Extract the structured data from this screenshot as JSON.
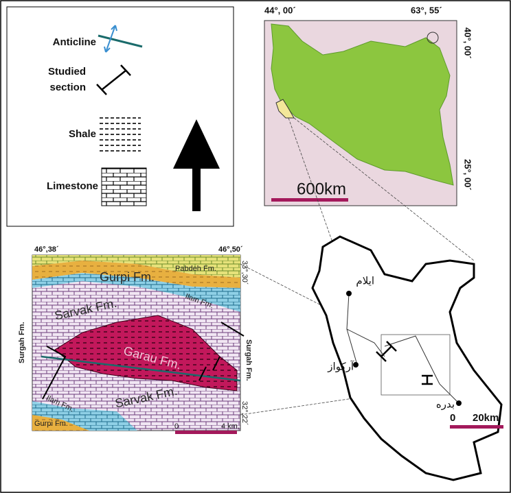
{
  "legend": {
    "anticline": "Anticline",
    "studied_section": [
      "Studied",
      "section"
    ],
    "shale": "Shale",
    "limestone": "Limestone"
  },
  "iran_map": {
    "lon_labels": [
      "44°, 00´",
      "63°, 55´"
    ],
    "lat_labels": [
      "40°, 00´",
      "25°, 00´"
    ],
    "scale": "600km"
  },
  "local_map": {
    "lon_labels": [
      "46°,38´",
      "46°,50´"
    ],
    "lat_labels": [
      "33°,30´",
      "32°,22´"
    ],
    "formations": [
      "Pabdeh Fm.",
      "Gurpi Fm.",
      "Ilam Fm.",
      "Sarvak Fm.",
      "Garau Fm.",
      "Surgah Fm.",
      "Surgah Fm.",
      "Ilam Fm.",
      "Gurpi Fm.",
      "Sarvak Fm."
    ],
    "scale": [
      "0",
      "4 km."
    ]
  },
  "province_map": {
    "places": [
      "ایلام",
      "آرکواز",
      "بدره"
    ],
    "scale": [
      "0",
      "20km"
    ]
  }
}
